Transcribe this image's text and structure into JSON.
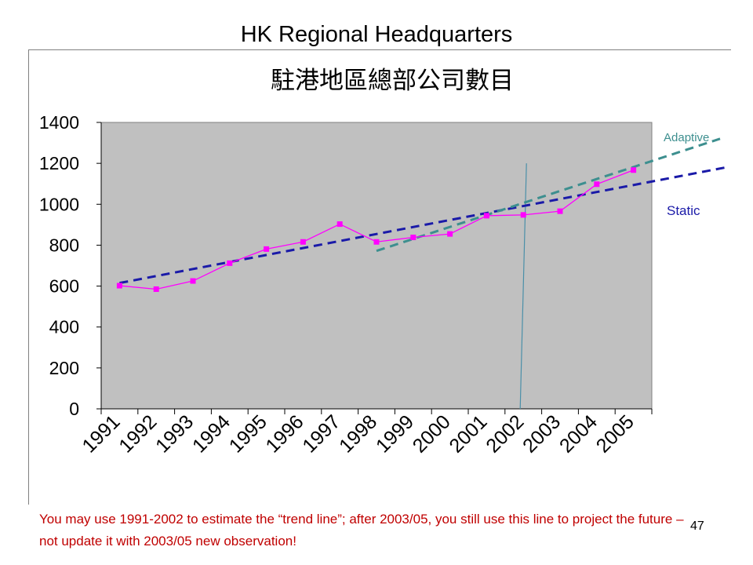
{
  "slide": {
    "title": "HK Regional Headquarters",
    "footnote": "You may use 1991-2002 to estimate the “trend line”; after 2003/05, you still use this line to project the future – not update it with 2003/05 new observation!",
    "page_number": "47"
  },
  "chart_data": {
    "type": "line",
    "title": "駐港地區總部公司數目",
    "categories": [
      "1991",
      "1992",
      "1993",
      "1994",
      "1995",
      "1996",
      "1997",
      "1998",
      "1999",
      "2000",
      "2001",
      "2002",
      "2003",
      "2004",
      "2005"
    ],
    "series": [
      {
        "values": [
          602,
          585,
          625,
          712,
          781,
          816,
          903,
          816,
          838,
          855,
          944,
          948,
          966,
          1098,
          1167
        ],
        "color": "#ff00ff"
      }
    ],
    "ylim": [
      0,
      1400
    ],
    "yticks": [
      0,
      200,
      400,
      600,
      800,
      1000,
      1200,
      1400
    ],
    "grid": false,
    "plot_background": "#c0c0c0",
    "annotations": {
      "static_trend": {
        "label": "Static",
        "x_start": "1991",
        "y_start": 615,
        "x_end": "2005",
        "y_end": 1094,
        "color": "#1a1aa8"
      },
      "adaptive_trend": {
        "label": "Adaptive",
        "x_start": "1998",
        "y_start": 772,
        "x_end": "2005",
        "y_end": 1182,
        "color": "#3d8f8f"
      },
      "divider": {
        "at": "2002",
        "color": "#4a8fa8"
      }
    }
  }
}
